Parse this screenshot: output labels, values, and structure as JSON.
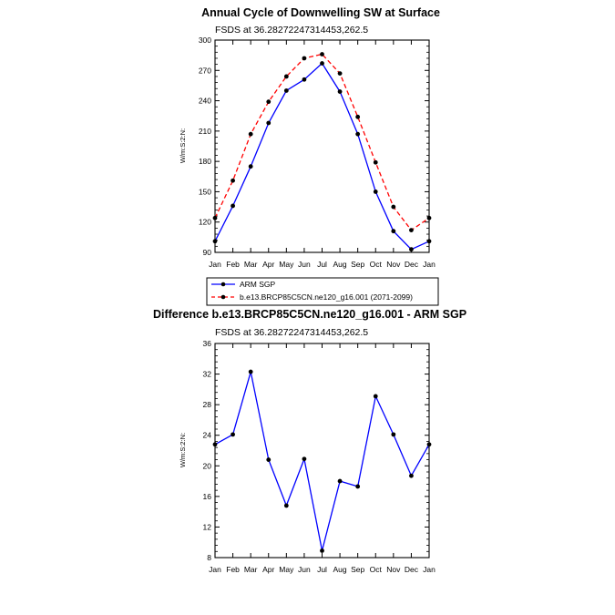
{
  "chart_data": [
    {
      "type": "line",
      "title": "Annual Cycle of Downwelling SW at Surface",
      "subtitle": "FSDS at 36.28272247314453,262.5",
      "ylabel": "W/m:S:2:N:",
      "categories": [
        "Jan",
        "Feb",
        "Mar",
        "Apr",
        "May",
        "Jun",
        "Jul",
        "Aug",
        "Sep",
        "Oct",
        "Nov",
        "Dec",
        "Jan"
      ],
      "ylim": [
        90,
        300
      ],
      "yticks": [
        90,
        120,
        150,
        180,
        210,
        240,
        270,
        300
      ],
      "legend_position": "bottom",
      "series": [
        {
          "name": "ARM SGP",
          "color": "#0000ff",
          "dash": "solid",
          "values": [
            101,
            136,
            175,
            218,
            250,
            261,
            277,
            249,
            207,
            150,
            111,
            93,
            101
          ]
        },
        {
          "name": "b.e13.BRCP85C5CN.ne120_g16.001 (2071-2099)",
          "color": "#ff0000",
          "dash": "dashed",
          "values": [
            124,
            161,
            207,
            239,
            264,
            282,
            286,
            267,
            224,
            179,
            135,
            112,
            124
          ]
        }
      ]
    },
    {
      "type": "line",
      "title": "Difference b.e13.BRCP85C5CN.ne120_g16.001 - ARM SGP",
      "subtitle": "FSDS at 36.28272247314453,262.5",
      "ylabel": "W/m:S:2:N:",
      "categories": [
        "Jan",
        "Feb",
        "Mar",
        "Apr",
        "May",
        "Jun",
        "Jul",
        "Aug",
        "Sep",
        "Oct",
        "Nov",
        "Dec",
        "Jan"
      ],
      "ylim": [
        8,
        36
      ],
      "yticks": [
        8,
        12,
        16,
        20,
        24,
        28,
        32,
        36
      ],
      "series": [
        {
          "color": "#0000ff",
          "dash": "solid",
          "values": [
            22.8,
            24.1,
            32.3,
            20.8,
            14.8,
            20.9,
            8.9,
            18.0,
            17.3,
            29.1,
            24.1,
            18.7,
            22.8
          ]
        }
      ]
    }
  ]
}
